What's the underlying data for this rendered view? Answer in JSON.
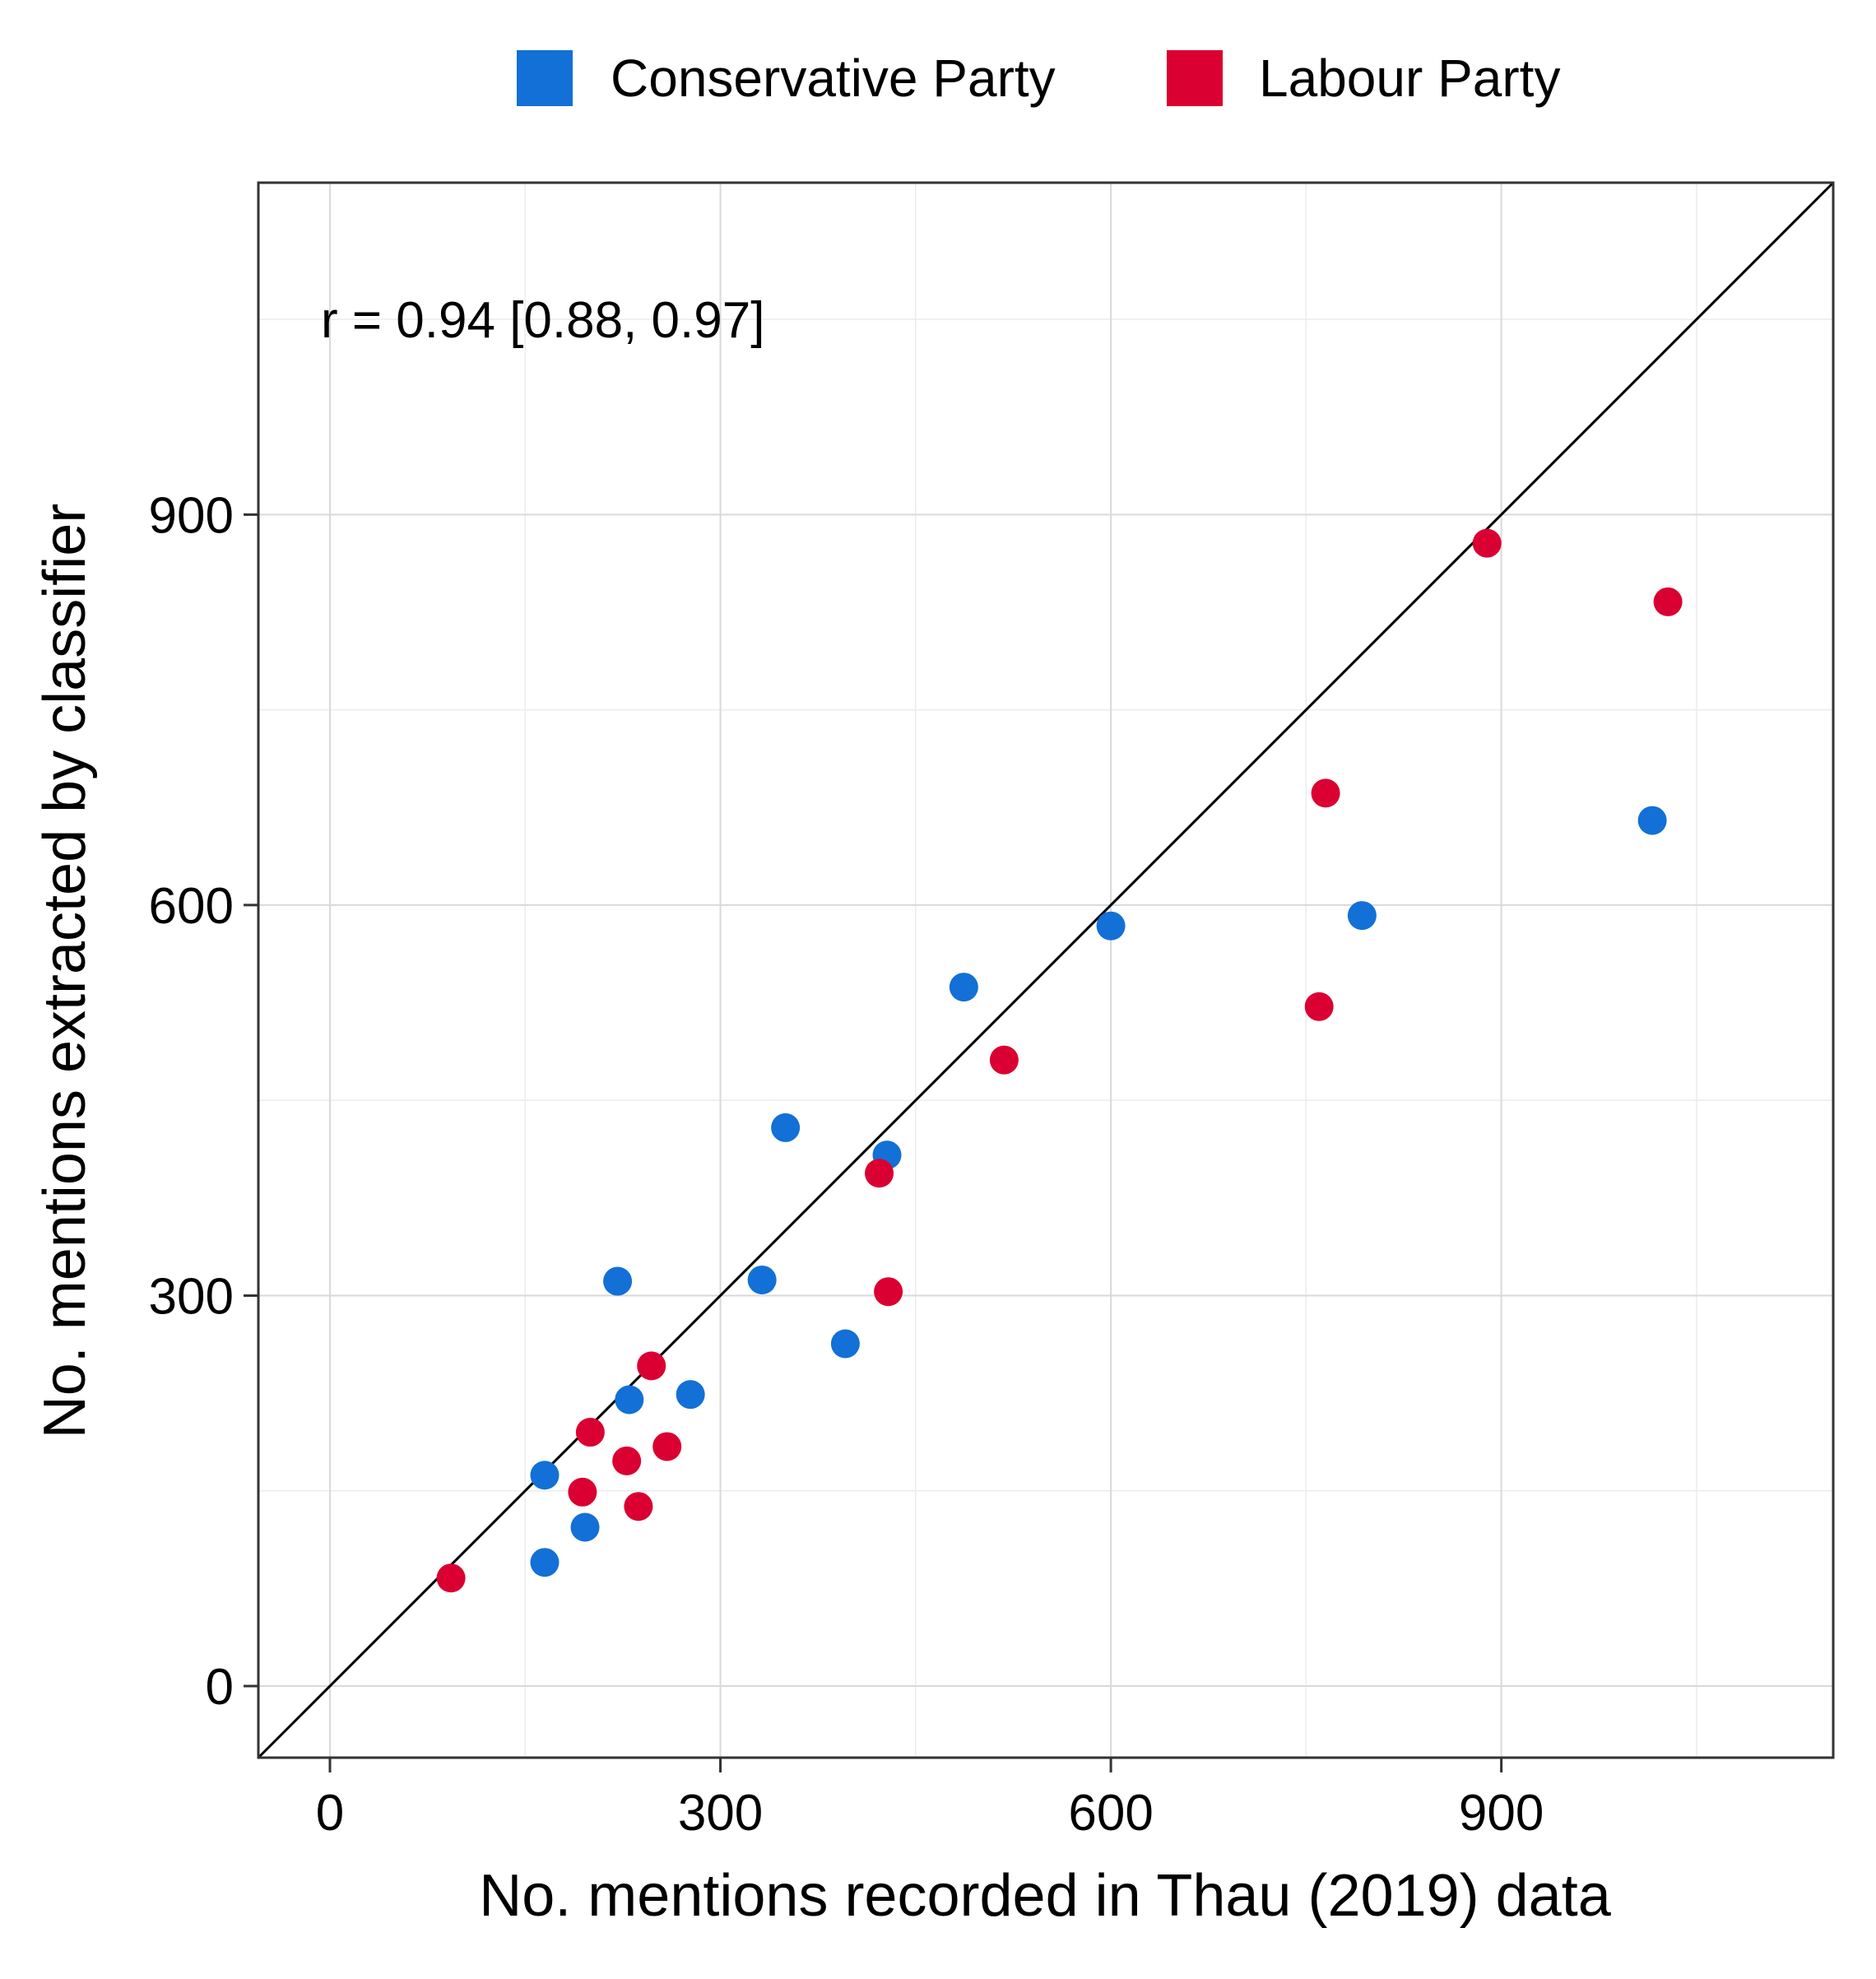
{
  "chart_data": {
    "type": "scatter",
    "xlabel": "No. mentions recorded in Thau (2019) data",
    "ylabel": "No. mentions extracted by classifier",
    "xlim": [
      -55,
      1155
    ],
    "ylim": [
      -55,
      1155
    ],
    "xticks": [
      0,
      300,
      600,
      900
    ],
    "yticks": [
      0,
      300,
      600,
      900
    ],
    "xtick_labels": [
      "0",
      "300",
      "600",
      "900"
    ],
    "ytick_labels": [
      "0",
      "300",
      "600",
      "900"
    ],
    "grid": true,
    "identity_line": true,
    "annotation": "r = 0.94 [0.88, 0.97]",
    "legend_position": "top",
    "series": [
      {
        "name": "Conservative Party",
        "color": "#1270D6",
        "points": [
          {
            "x": 165,
            "y": 95
          },
          {
            "x": 196,
            "y": 122
          },
          {
            "x": 165,
            "y": 162
          },
          {
            "x": 230,
            "y": 220
          },
          {
            "x": 277,
            "y": 224
          },
          {
            "x": 221,
            "y": 311
          },
          {
            "x": 332,
            "y": 312
          },
          {
            "x": 396,
            "y": 263
          },
          {
            "x": 350,
            "y": 429
          },
          {
            "x": 428,
            "y": 408
          },
          {
            "x": 487,
            "y": 537
          },
          {
            "x": 600,
            "y": 584
          },
          {
            "x": 793,
            "y": 592
          },
          {
            "x": 1016,
            "y": 665
          }
        ]
      },
      {
        "name": "Labour Party",
        "color": "#DA0031",
        "points": [
          {
            "x": 93,
            "y": 83
          },
          {
            "x": 194,
            "y": 149
          },
          {
            "x": 237,
            "y": 138
          },
          {
            "x": 228,
            "y": 173
          },
          {
            "x": 259,
            "y": 184
          },
          {
            "x": 200,
            "y": 195
          },
          {
            "x": 247,
            "y": 246
          },
          {
            "x": 429,
            "y": 303
          },
          {
            "x": 422,
            "y": 394
          },
          {
            "x": 518,
            "y": 481
          },
          {
            "x": 760,
            "y": 522
          },
          {
            "x": 765,
            "y": 686
          },
          {
            "x": 889,
            "y": 878
          },
          {
            "x": 1028,
            "y": 833
          }
        ]
      }
    ]
  }
}
